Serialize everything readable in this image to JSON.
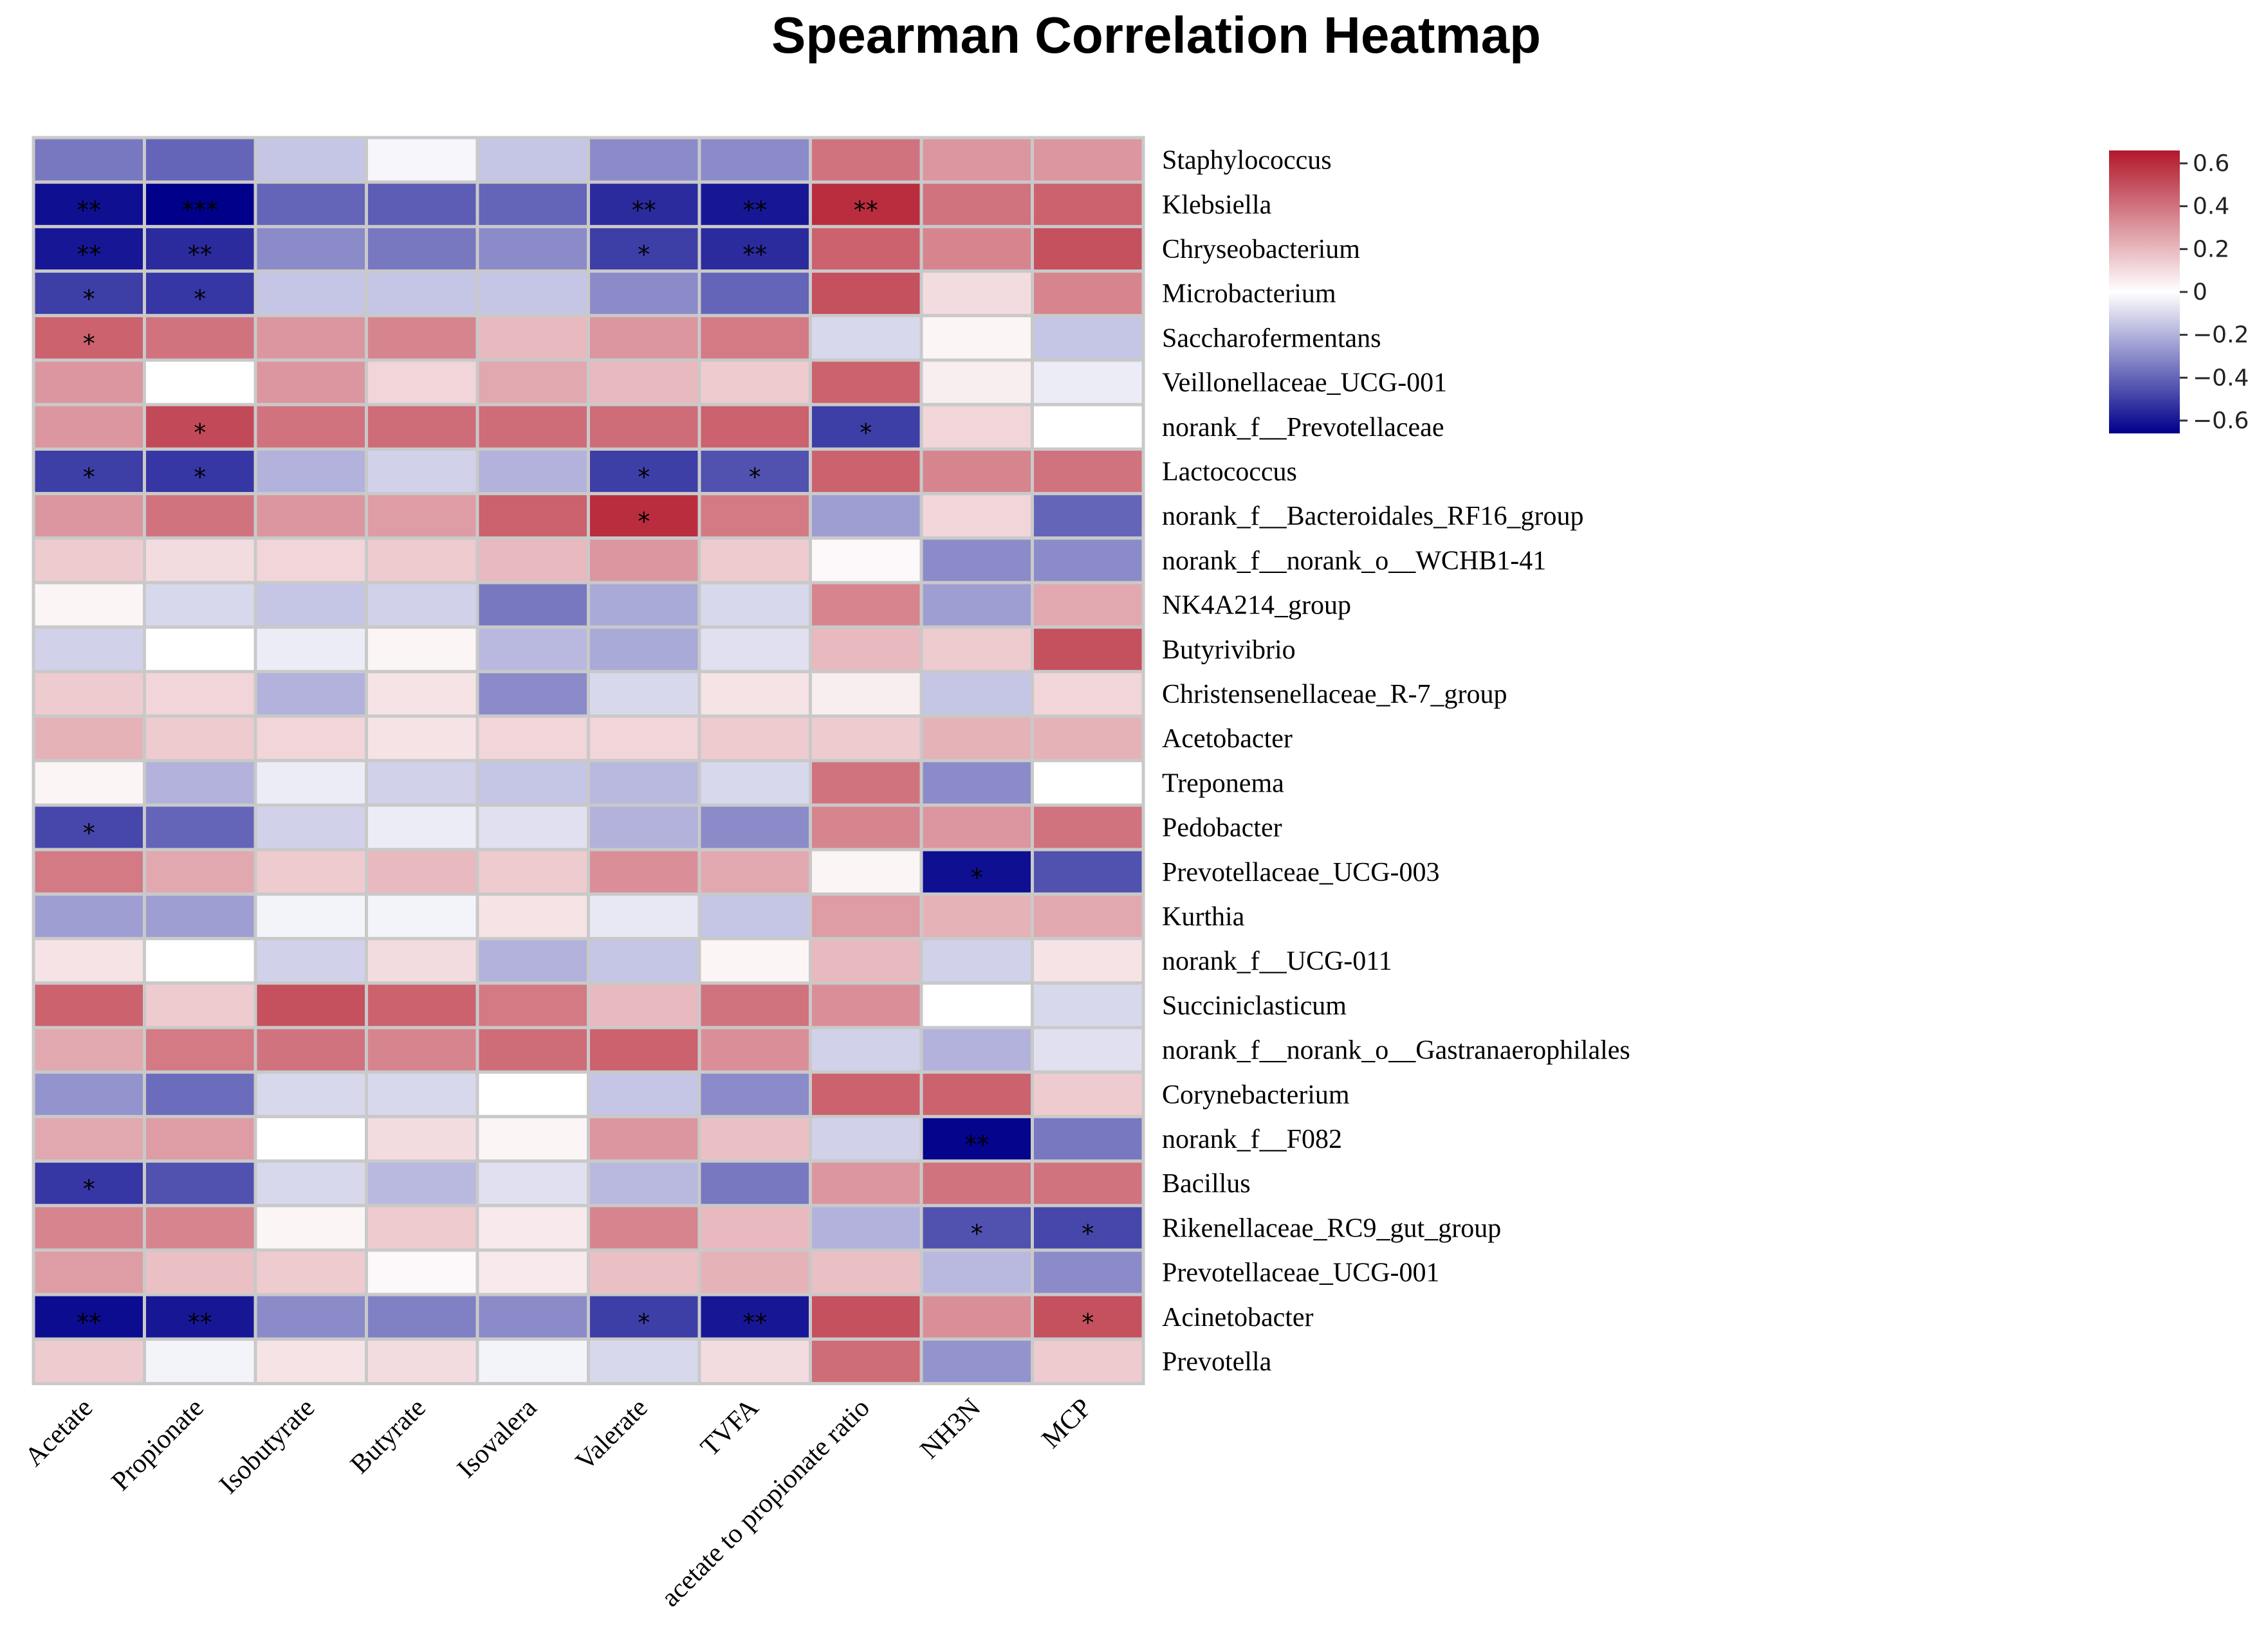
{
  "chart_data": {
    "type": "heatmap",
    "title": "Spearman Correlation Heatmap",
    "columns": [
      "Acetate",
      "Propionate",
      "Isobutyrate",
      "Butyrate",
      "Isovalera",
      "Valerate",
      "TVFA",
      "acetate to propionate ratio",
      "NH3N",
      "MCP"
    ],
    "rows": [
      "Staphylococcus",
      "Klebsiella",
      "Chryseobacterium",
      "Microbacterium",
      "Saccharofermentans",
      "Veillonellaceae_UCG-001",
      "norank_f__Prevotellaceae",
      "Lactococcus",
      "norank_f__Bacteroidales_RF16_group",
      "norank_f__norank_o__WCHB1-41",
      "NK4A214_group",
      "Butyrivibrio",
      "Christensenellaceae_R-7_group",
      "Acetobacter",
      "Treponema",
      "Pedobacter",
      "Prevotellaceae_UCG-003",
      "Kurthia",
      "norank_f__UCG-011",
      "Succiniclasticum",
      "norank_f__norank_o__Gastranaerophilales",
      "Corynebacterium",
      "norank_f__F082",
      "Bacillus",
      "Rikenellaceae_RC9_gut_group",
      "Prevotellaceae_UCG-001",
      "Acinetobacter",
      "Prevotella"
    ],
    "values": [
      [
        -0.35,
        -0.4,
        -0.15,
        -0.02,
        -0.15,
        -0.3,
        -0.3,
        0.4,
        0.3,
        0.3
      ],
      [
        -0.62,
        -0.66,
        -0.4,
        -0.42,
        -0.4,
        -0.55,
        -0.6,
        0.6,
        0.4,
        0.45
      ],
      [
        -0.6,
        -0.55,
        -0.3,
        -0.35,
        -0.3,
        -0.5,
        -0.55,
        0.45,
        0.35,
        0.5
      ],
      [
        -0.5,
        -0.52,
        -0.15,
        -0.15,
        -0.15,
        -0.3,
        -0.4,
        0.5,
        0.1,
        0.35
      ],
      [
        0.45,
        0.4,
        0.3,
        0.35,
        0.2,
        0.3,
        0.38,
        -0.1,
        0.03,
        -0.15
      ],
      [
        0.3,
        0.0,
        0.3,
        0.12,
        0.25,
        0.2,
        0.15,
        0.45,
        0.05,
        -0.05
      ],
      [
        0.3,
        0.52,
        0.4,
        0.42,
        0.42,
        0.42,
        0.45,
        -0.5,
        0.12,
        0.0
      ],
      [
        -0.5,
        -0.52,
        -0.2,
        -0.12,
        -0.2,
        -0.5,
        -0.45,
        0.45,
        0.35,
        0.4
      ],
      [
        0.3,
        0.4,
        0.3,
        0.28,
        0.45,
        0.6,
        0.38,
        -0.25,
        0.12,
        -0.4
      ],
      [
        0.15,
        0.1,
        0.12,
        0.15,
        0.2,
        0.3,
        0.15,
        0.02,
        -0.3,
        -0.3
      ],
      [
        0.03,
        -0.1,
        -0.15,
        -0.12,
        -0.35,
        -0.22,
        -0.1,
        0.35,
        -0.25,
        0.25
      ],
      [
        -0.12,
        0.0,
        -0.05,
        0.03,
        -0.18,
        -0.22,
        -0.08,
        0.2,
        0.15,
        0.5
      ],
      [
        0.15,
        0.12,
        -0.2,
        0.08,
        -0.3,
        -0.1,
        0.08,
        0.05,
        -0.15,
        0.12
      ],
      [
        0.22,
        0.15,
        0.12,
        0.08,
        0.12,
        0.12,
        0.15,
        0.15,
        0.22,
        0.22
      ],
      [
        0.03,
        -0.2,
        -0.05,
        -0.12,
        -0.15,
        -0.18,
        -0.1,
        0.4,
        -0.3,
        0.0
      ],
      [
        -0.48,
        -0.4,
        -0.12,
        -0.05,
        -0.08,
        -0.2,
        -0.3,
        0.35,
        0.3,
        0.4
      ],
      [
        0.38,
        0.25,
        0.15,
        0.2,
        0.15,
        0.32,
        0.25,
        0.03,
        -0.62,
        -0.45
      ],
      [
        -0.25,
        -0.25,
        -0.03,
        -0.03,
        0.08,
        -0.06,
        -0.15,
        0.28,
        0.22,
        0.25
      ],
      [
        0.08,
        0.0,
        -0.12,
        0.1,
        -0.2,
        -0.15,
        0.03,
        0.2,
        -0.12,
        0.08
      ],
      [
        0.45,
        0.15,
        0.5,
        0.45,
        0.38,
        0.2,
        0.4,
        0.32,
        0.0,
        -0.1
      ],
      [
        0.25,
        0.38,
        0.4,
        0.35,
        0.42,
        0.45,
        0.32,
        -0.12,
        -0.2,
        -0.08
      ],
      [
        -0.28,
        -0.38,
        -0.1,
        -0.1,
        0.0,
        -0.15,
        -0.3,
        0.45,
        0.45,
        0.15
      ],
      [
        0.25,
        0.28,
        0.0,
        0.1,
        0.03,
        0.3,
        0.18,
        -0.12,
        -0.65,
        -0.35
      ],
      [
        -0.52,
        -0.45,
        -0.1,
        -0.18,
        -0.08,
        -0.18,
        -0.35,
        0.3,
        0.4,
        0.4
      ],
      [
        0.35,
        0.35,
        0.03,
        0.15,
        0.06,
        0.35,
        0.2,
        -0.2,
        -0.45,
        -0.48
      ],
      [
        0.28,
        0.18,
        0.15,
        0.02,
        0.06,
        0.18,
        0.22,
        0.18,
        -0.18,
        -0.3
      ],
      [
        -0.63,
        -0.6,
        -0.3,
        -0.33,
        -0.3,
        -0.5,
        -0.6,
        0.5,
        0.32,
        0.5
      ],
      [
        0.15,
        -0.03,
        0.08,
        0.1,
        -0.03,
        -0.1,
        0.1,
        0.42,
        -0.28,
        0.15
      ]
    ],
    "significance": [
      [
        "",
        "",
        "",
        "",
        "",
        "",
        "",
        "",
        "",
        ""
      ],
      [
        "**",
        "***",
        "",
        "",
        "",
        "**",
        "**",
        "**",
        "",
        ""
      ],
      [
        "**",
        "**",
        "",
        "",
        "",
        "*",
        "**",
        "",
        "",
        ""
      ],
      [
        "*",
        "*",
        "",
        "",
        "",
        "",
        "",
        "",
        "",
        ""
      ],
      [
        "*",
        "",
        "",
        "",
        "",
        "",
        "",
        "",
        "",
        ""
      ],
      [
        "",
        "",
        "",
        "",
        "",
        "",
        "",
        "",
        "",
        ""
      ],
      [
        "",
        "*",
        "",
        "",
        "",
        "",
        "",
        "*",
        "",
        ""
      ],
      [
        "*",
        "*",
        "",
        "",
        "",
        "*",
        "*",
        "",
        "",
        ""
      ],
      [
        "",
        "",
        "",
        "",
        "",
        "*",
        "",
        "",
        "",
        ""
      ],
      [
        "",
        "",
        "",
        "",
        "",
        "",
        "",
        "",
        "",
        ""
      ],
      [
        "",
        "",
        "",
        "",
        "",
        "",
        "",
        "",
        "",
        ""
      ],
      [
        "",
        "",
        "",
        "",
        "",
        "",
        "",
        "",
        "",
        ""
      ],
      [
        "",
        "",
        "",
        "",
        "",
        "",
        "",
        "",
        "",
        ""
      ],
      [
        "",
        "",
        "",
        "",
        "",
        "",
        "",
        "",
        "",
        ""
      ],
      [
        "",
        "",
        "",
        "",
        "",
        "",
        "",
        "",
        "",
        ""
      ],
      [
        "*",
        "",
        "",
        "",
        "",
        "",
        "",
        "",
        "",
        ""
      ],
      [
        "",
        "",
        "",
        "",
        "",
        "",
        "",
        "",
        "*",
        ""
      ],
      [
        "",
        "",
        "",
        "",
        "",
        "",
        "",
        "",
        "",
        ""
      ],
      [
        "",
        "",
        "",
        "",
        "",
        "",
        "",
        "",
        "",
        ""
      ],
      [
        "",
        "",
        "",
        "",
        "",
        "",
        "",
        "",
        "",
        ""
      ],
      [
        "",
        "",
        "",
        "",
        "",
        "",
        "",
        "",
        "",
        ""
      ],
      [
        "",
        "",
        "",
        "",
        "",
        "",
        "",
        "",
        "",
        ""
      ],
      [
        "",
        "",
        "",
        "",
        "",
        "",
        "",
        "",
        "**",
        ""
      ],
      [
        "*",
        "",
        "",
        "",
        "",
        "",
        "",
        "",
        "",
        ""
      ],
      [
        "",
        "",
        "",
        "",
        "",
        "",
        "",
        "",
        "*",
        "*"
      ],
      [
        "",
        "",
        "",
        "",
        "",
        "",
        "",
        "",
        "",
        ""
      ],
      [
        "**",
        "**",
        "",
        "",
        "",
        "*",
        "**",
        "",
        "",
        "*"
      ],
      [
        "",
        "",
        "",
        "",
        "",
        "",
        "",
        "",
        "",
        ""
      ]
    ],
    "colorbar": {
      "min": -0.66,
      "max": 0.66,
      "ticks": [
        -0.6,
        -0.4,
        -0.2,
        0,
        0.2,
        0.4,
        0.6
      ],
      "tick_labels": [
        "−0.6",
        "−0.4",
        "−0.2",
        "0",
        "0.2",
        "0.4",
        "0.6"
      ],
      "low_color": "#00008b",
      "mid_color": "#ffffff",
      "high_color": "#b2182b"
    },
    "legend_position": "top-right"
  }
}
